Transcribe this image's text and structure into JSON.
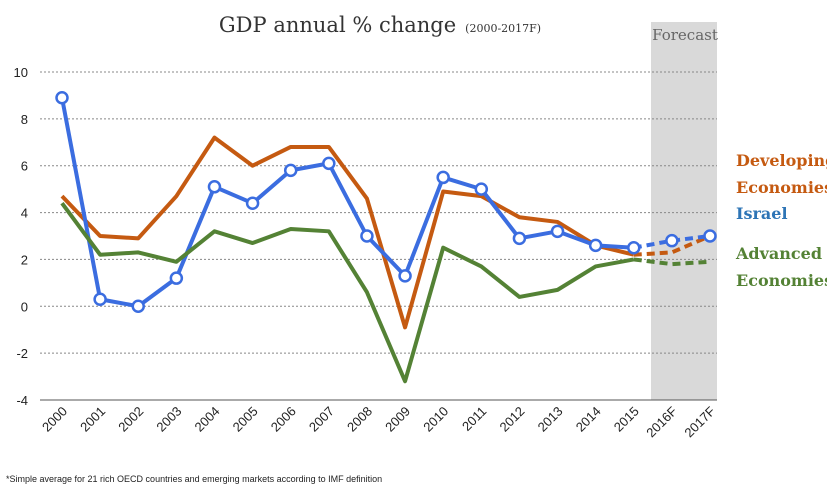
{
  "chart_data": {
    "type": "line",
    "title": "GDP annual % change",
    "subtitle": "(2000-2017F)",
    "categories": [
      "2000",
      "2001",
      "2002",
      "2003",
      "2004",
      "2005",
      "2006",
      "2007",
      "2008",
      "2009",
      "2010",
      "2011",
      "2012",
      "2013",
      "2014",
      "2015",
      "2016F",
      "2017F"
    ],
    "ylim": [
      -4,
      10
    ],
    "yticks": [
      -4,
      -2,
      0,
      2,
      4,
      6,
      8,
      10
    ],
    "grid": true,
    "forecast_label": "Forecast",
    "forecast_start_index": 16,
    "series": [
      {
        "name": "Developing Economies",
        "color": "#c55a11",
        "values": [
          4.7,
          3.0,
          2.9,
          4.7,
          7.2,
          6.0,
          6.8,
          6.8,
          4.6,
          -0.9,
          4.9,
          4.7,
          3.8,
          3.6,
          2.6,
          2.2,
          2.3,
          3.0
        ],
        "markers": false
      },
      {
        "name": "Israel",
        "color": "#3b6de0",
        "values": [
          8.9,
          0.3,
          0.0,
          1.2,
          5.1,
          4.4,
          5.8,
          6.1,
          3.0,
          1.3,
          5.5,
          5.0,
          2.9,
          3.2,
          2.6,
          2.5,
          2.8,
          3.0
        ],
        "markers": true
      },
      {
        "name": "Advanced Economies",
        "color": "#548235",
        "values": [
          4.4,
          2.2,
          2.3,
          1.9,
          3.2,
          2.7,
          3.3,
          3.2,
          0.6,
          -3.2,
          2.5,
          1.7,
          0.4,
          0.7,
          1.7,
          2.0,
          1.8,
          1.9
        ],
        "markers": false
      }
    ],
    "legend": [
      {
        "lines": [
          "Developing",
          "Economies"
        ],
        "color": "#c55a11"
      },
      {
        "lines": [
          "Israel"
        ],
        "color": "#2e75b6"
      },
      {
        "lines": [
          "Advanced",
          "Economies"
        ],
        "color": "#548235"
      }
    ],
    "footnote": "*Simple average for 21 rich OECD countries and emerging markets according to IMF definition"
  }
}
